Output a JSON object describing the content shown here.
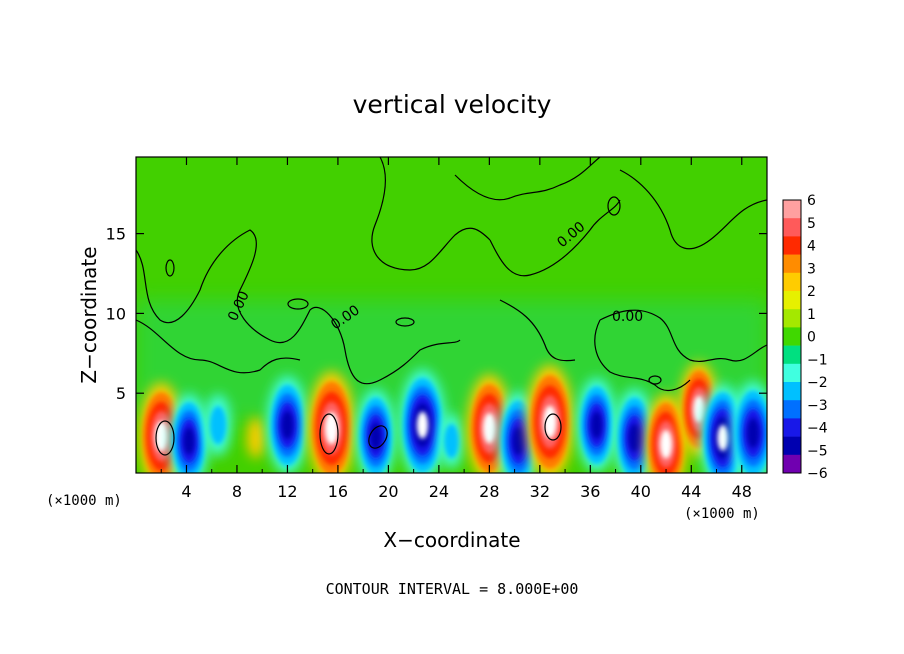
{
  "chart_data": {
    "type": "heatmap",
    "title": "vertical velocity",
    "xlabel": "X−coordinate",
    "ylabel": "Z−coordinate",
    "x_unit_left": "(×1000 m)",
    "x_unit_right": "(×1000 m)",
    "footer": "CONTOUR INTERVAL = 8.000E+00",
    "xlim": [
      0,
      50
    ],
    "ylim": [
      0,
      19.8
    ],
    "x_ticks": [
      4,
      8,
      12,
      16,
      20,
      24,
      28,
      32,
      36,
      40,
      44,
      48
    ],
    "x_tick_labels": [
      "4",
      "8",
      "12",
      "16",
      "20",
      "24",
      "28",
      "32",
      "36",
      "40",
      "44",
      "48"
    ],
    "y_ticks": [
      5,
      10,
      15
    ],
    "y_tick_labels": [
      "5",
      "10",
      "15"
    ],
    "contour_labels": [
      "0.00",
      "0.00",
      "0.00",
      "0.00",
      "0.00"
    ],
    "colorbar": {
      "labels": [
        "6",
        "5",
        "4",
        "3",
        "2",
        "1",
        "0",
        "−1",
        "−2",
        "−3",
        "−4",
        "−5",
        "−6"
      ],
      "colors": [
        "#ffa0a0",
        "#ff5a5a",
        "#ff2a00",
        "#ff8c00",
        "#ffcc00",
        "#e6f000",
        "#a4e800",
        "#40d800",
        "#00e080",
        "#40ffe0",
        "#00c0ff",
        "#0070ff",
        "#1818e8",
        "#0000b0",
        "#7000b0"
      ]
    },
    "cells": [
      {
        "x": 2,
        "z": 2.3,
        "w": 5.5
      },
      {
        "x": 4.2,
        "z": 2,
        "w": -4.5
      },
      {
        "x": 6.5,
        "z": 3,
        "w": -2
      },
      {
        "x": 9.5,
        "z": 2.2,
        "w": 0.4
      },
      {
        "x": 12.0,
        "z": 3.0,
        "w": -4.8
      },
      {
        "x": 15.5,
        "z": 2.8,
        "w": 6
      },
      {
        "x": 19.0,
        "z": 2.3,
        "w": -4.5
      },
      {
        "x": 22.7,
        "z": 3.0,
        "w": -5.8
      },
      {
        "x": 25.0,
        "z": 2.0,
        "w": -1.5
      },
      {
        "x": 28.0,
        "z": 2.8,
        "w": 5.5
      },
      {
        "x": 30.3,
        "z": 2.0,
        "w": -4.8
      },
      {
        "x": 32.8,
        "z": 3.2,
        "w": 6
      },
      {
        "x": 36.5,
        "z": 3.0,
        "w": -4.5
      },
      {
        "x": 39.5,
        "z": 2.2,
        "w": -4.8
      },
      {
        "x": 42.0,
        "z": 1.8,
        "w": 5
      },
      {
        "x": 44.6,
        "z": 4.0,
        "w": 4.5
      },
      {
        "x": 46.5,
        "z": 2.2,
        "w": -5.5
      },
      {
        "x": 48.9,
        "z": 2.5,
        "w": -5.2
      }
    ]
  }
}
